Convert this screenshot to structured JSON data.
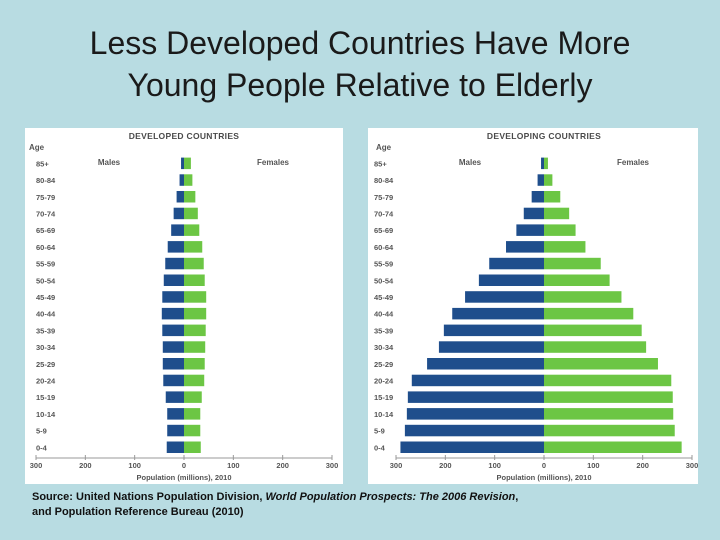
{
  "slide": {
    "title_line1": "Less Developed Countries Have More",
    "title_line2": "Young People Relative to Elderly"
  },
  "source": {
    "prefix": "Source: United Nations Population Division, ",
    "italic": "World Population Prospects: The 2006 Revision",
    "suffix": ",",
    "line2": "and Population Reference Bureau (2010)"
  },
  "colors": {
    "males": "#1f4e8c",
    "females": "#6cc644",
    "axis_text": "#555555",
    "panel_title": "#4a4a4a"
  },
  "chart_data": [
    {
      "type": "bar",
      "subtype": "population-pyramid",
      "title": "DEVELOPED COUNTRIES",
      "ylabel": "Age",
      "xlabel": "Population (millions), 2010",
      "left_label": "Males",
      "right_label": "Females",
      "categories": [
        "85+",
        "80-84",
        "75-79",
        "70-74",
        "65-69",
        "60-64",
        "55-59",
        "50-54",
        "45-49",
        "40-44",
        "35-39",
        "30-34",
        "25-29",
        "20-24",
        "15-19",
        "10-14",
        "5-9",
        "0-4"
      ],
      "series": [
        {
          "name": "Males",
          "values": [
            6,
            9,
            15,
            21,
            26,
            33,
            38,
            41,
            44,
            45,
            44,
            43,
            43,
            42,
            37,
            34,
            34,
            35
          ]
        },
        {
          "name": "Females",
          "values": [
            14,
            17,
            23,
            28,
            31,
            37,
            40,
            42,
            45,
            45,
            44,
            43,
            42,
            41,
            36,
            33,
            33,
            34
          ]
        }
      ],
      "xlim": [
        -300,
        300
      ],
      "xticks": [
        "300",
        "200",
        "100",
        "0",
        "100",
        "200",
        "300"
      ]
    },
    {
      "type": "bar",
      "subtype": "population-pyramid",
      "title": "DEVELOPING COUNTRIES",
      "ylabel": "Age",
      "xlabel": "Population (millions), 2010",
      "left_label": "Males",
      "right_label": "Females",
      "categories": [
        "85+",
        "80-84",
        "75-79",
        "70-74",
        "65-69",
        "60-64",
        "55-59",
        "50-54",
        "45-49",
        "40-44",
        "35-39",
        "30-34",
        "25-29",
        "20-24",
        "15-19",
        "10-14",
        "5-9",
        "0-4"
      ],
      "series": [
        {
          "name": "Males",
          "values": [
            6,
            13,
            25,
            41,
            56,
            77,
            111,
            132,
            160,
            186,
            203,
            213,
            237,
            268,
            276,
            278,
            282,
            291
          ]
        },
        {
          "name": "Females",
          "values": [
            8,
            17,
            33,
            51,
            64,
            84,
            115,
            133,
            157,
            181,
            198,
            207,
            231,
            258,
            261,
            262,
            265,
            279
          ]
        }
      ],
      "xlim": [
        -300,
        300
      ],
      "xticks": [
        "300",
        "200",
        "100",
        "0",
        "100",
        "200",
        "300"
      ]
    }
  ]
}
